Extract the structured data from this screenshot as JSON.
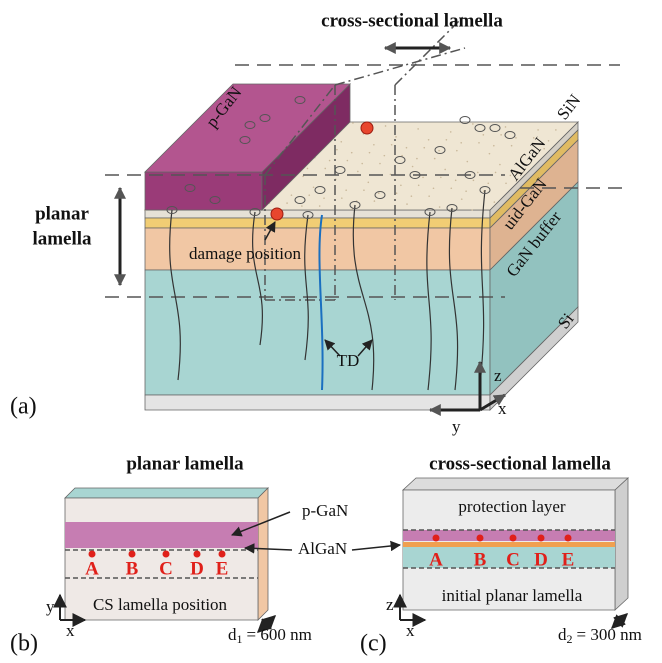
{
  "panel_a": {
    "label": "(a)",
    "title": "cross-sectional lamella",
    "layers": [
      "SiN",
      "AlGaN",
      "uid-GaN",
      "GaN buffer",
      "Si"
    ],
    "p_gan": "p-GaN",
    "planar_lamella": [
      "planar",
      "lamella"
    ],
    "damage": "damage position",
    "td": "TD",
    "axes": [
      "z",
      "x",
      "y"
    ]
  },
  "panel_b": {
    "label": "(b)",
    "title": "planar lamella",
    "p_gan": "p-GaN",
    "algan": "AlGaN",
    "points": [
      "A",
      "B",
      "C",
      "D",
      "E"
    ],
    "cs_position": "CS lamella position",
    "axes": [
      "y",
      "x"
    ],
    "thickness": {
      "symbol": "d",
      "sub": "1",
      "text": "= 600 nm"
    }
  },
  "panel_c": {
    "label": "(c)",
    "title": "cross-sectional lamella",
    "protection": "protection layer",
    "points": [
      "A",
      "B",
      "C",
      "D",
      "E"
    ],
    "initial": "initial planar lamella",
    "axes": [
      "z",
      "x"
    ],
    "thickness": {
      "symbol": "d",
      "sub": "2",
      "text": "= 300 nm"
    }
  }
}
